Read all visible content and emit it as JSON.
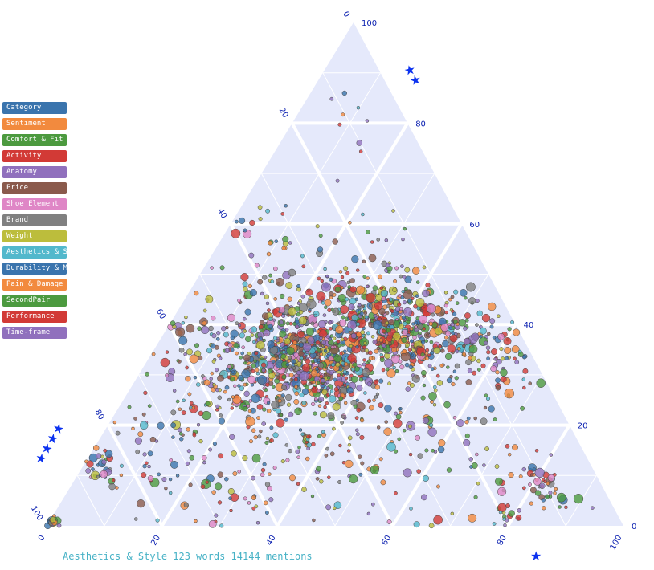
{
  "legend": [
    {
      "label": "Category",
      "color": "#3a74ad"
    },
    {
      "label": "Sentiment",
      "color": "#f28a3e"
    },
    {
      "label": "Comfort & Fit",
      "color": "#4c9a3f"
    },
    {
      "label": "Activity",
      "color": "#d23a36"
    },
    {
      "label": "Anatomy",
      "color": "#9070bd"
    },
    {
      "label": "Price",
      "color": "#8a5a4c"
    },
    {
      "label": "Shoe Element",
      "color": "#df86c6"
    },
    {
      "label": "Brand",
      "color": "#808080"
    },
    {
      "label": "Weight",
      "color": "#bcbd3c"
    },
    {
      "label": "Aesthetics & St",
      "color": "#52b8cc"
    },
    {
      "label": "Durability & Ma",
      "color": "#3a74ad"
    },
    {
      "label": "Pain & Damage",
      "color": "#f28a3e"
    },
    {
      "label": "SecondPair",
      "color": "#4c9a3f"
    },
    {
      "label": "Performance",
      "color": "#d23a36"
    },
    {
      "label": "Time-frame",
      "color": "#9070bd"
    }
  ],
  "footer": {
    "text": "Aesthetics & Style 123 words 14144 mentions"
  },
  "axis_symbols": {
    "a": "★★",
    "b": "★★★★",
    "c": "★"
  },
  "chart_data": {
    "type": "scatter",
    "subtype": "ternary",
    "axes": {
      "a": {
        "ticks": [
          "0",
          "20",
          "40",
          "60",
          "80",
          "100"
        ],
        "range": [
          0,
          100
        ]
      },
      "b": {
        "ticks": [
          "0",
          "20",
          "40",
          "60",
          "80",
          "100"
        ],
        "range": [
          0,
          100
        ]
      },
      "c": {
        "ticks": [
          "0",
          "20",
          "40",
          "60",
          "80",
          "100"
        ],
        "range": [
          0,
          100
        ]
      }
    },
    "grid": true,
    "legend_position": "left",
    "clusters": [
      {
        "a": 33,
        "b": 38,
        "c": 29,
        "spread": 6,
        "count": 520
      },
      {
        "a": 40,
        "b": 22,
        "c": 38,
        "spread": 7,
        "count": 380
      },
      {
        "a": 30,
        "b": 52,
        "c": 18,
        "spread": 9,
        "count": 260
      },
      {
        "a": 38,
        "b": 10,
        "c": 52,
        "spread": 8,
        "count": 180
      },
      {
        "a": 45,
        "b": 30,
        "c": 25,
        "spread": 14,
        "count": 220
      },
      {
        "a": 20,
        "b": 45,
        "c": 35,
        "spread": 18,
        "count": 160
      },
      {
        "a": 12,
        "b": 70,
        "c": 18,
        "spread": 12,
        "count": 110
      },
      {
        "a": 15,
        "b": 25,
        "c": 60,
        "spread": 14,
        "count": 90
      },
      {
        "a": 8,
        "b": 10,
        "c": 82,
        "spread": 3,
        "count": 40
      },
      {
        "a": 12,
        "b": 85,
        "c": 3,
        "spread": 3,
        "count": 35
      },
      {
        "a": 1,
        "b": 99,
        "c": 0,
        "spread": 0.8,
        "count": 45
      },
      {
        "a": 2,
        "b": 20,
        "c": 78,
        "spread": 2,
        "count": 18
      },
      {
        "a": 80,
        "b": 10,
        "c": 10,
        "spread": 4,
        "count": 8
      }
    ],
    "marker_size": [
      2,
      6
    ]
  }
}
